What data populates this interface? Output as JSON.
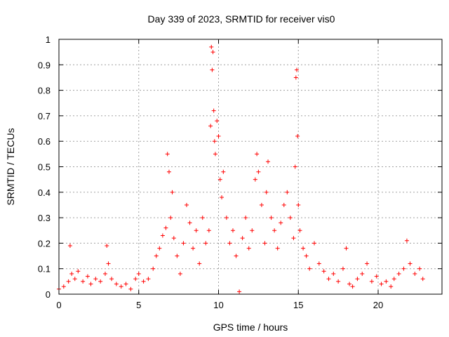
{
  "chart_data": {
    "type": "scatter",
    "title": "Day 339 of 2023, SRMTID for receiver vis0",
    "xlabel": "GPS time / hours",
    "ylabel": "SRMTID / TECUs",
    "xlim": [
      0,
      24
    ],
    "ylim": [
      0,
      1
    ],
    "xticks": [
      0,
      5,
      10,
      15,
      20
    ],
    "xtick_labels": [
      "0",
      "5",
      "10",
      "15",
      "20"
    ],
    "yticks": [
      0,
      0.1,
      0.2,
      0.3,
      0.4,
      0.5,
      0.6,
      0.7,
      0.8,
      0.9,
      1
    ],
    "ytick_labels": [
      "0",
      "0.1",
      "0.2",
      "0.3",
      "0.4",
      "0.5",
      "0.6",
      "0.7",
      "0.8",
      "0.9",
      "1"
    ],
    "grid": true,
    "marker": "plus",
    "color": "#ff0000",
    "series": [
      {
        "name": "vis0",
        "x": [
          0.0,
          0.3,
          0.6,
          0.7,
          0.8,
          1.0,
          1.2,
          1.5,
          1.8,
          2.0,
          2.3,
          2.6,
          2.9,
          3.0,
          3.1,
          3.3,
          3.6,
          3.9,
          4.2,
          4.5,
          4.8,
          5.0,
          5.3,
          5.6,
          5.9,
          6.1,
          6.3,
          6.5,
          6.7,
          6.8,
          6.9,
          7.0,
          7.1,
          7.2,
          7.4,
          7.6,
          7.8,
          8.0,
          8.2,
          8.4,
          8.6,
          8.8,
          9.0,
          9.2,
          9.4,
          9.5,
          9.55,
          9.6,
          9.65,
          9.7,
          9.75,
          9.8,
          9.9,
          10.0,
          10.1,
          10.2,
          10.3,
          10.5,
          10.7,
          10.9,
          11.1,
          11.3,
          11.5,
          11.7,
          11.9,
          12.1,
          12.3,
          12.4,
          12.5,
          12.7,
          12.9,
          13.0,
          13.1,
          13.3,
          13.5,
          13.7,
          13.9,
          14.1,
          14.3,
          14.5,
          14.7,
          14.8,
          14.85,
          14.9,
          14.95,
          15.0,
          15.1,
          15.3,
          15.5,
          15.7,
          16.0,
          16.3,
          16.6,
          16.9,
          17.2,
          17.5,
          17.8,
          18.0,
          18.2,
          18.4,
          18.7,
          19.0,
          19.3,
          19.6,
          19.9,
          20.2,
          20.5,
          20.8,
          21.0,
          21.3,
          21.6,
          21.8,
          22.0,
          22.3,
          22.6,
          22.8
        ],
        "y": [
          0.02,
          0.03,
          0.05,
          0.19,
          0.08,
          0.06,
          0.09,
          0.05,
          0.07,
          0.04,
          0.06,
          0.05,
          0.08,
          0.19,
          0.12,
          0.06,
          0.04,
          0.03,
          0.04,
          0.02,
          0.06,
          0.08,
          0.05,
          0.06,
          0.1,
          0.15,
          0.18,
          0.23,
          0.26,
          0.55,
          0.48,
          0.3,
          0.4,
          0.22,
          0.15,
          0.08,
          0.2,
          0.35,
          0.28,
          0.18,
          0.25,
          0.12,
          0.3,
          0.2,
          0.25,
          0.66,
          0.97,
          0.88,
          0.95,
          0.72,
          0.6,
          0.55,
          0.68,
          0.62,
          0.45,
          0.38,
          0.48,
          0.3,
          0.2,
          0.25,
          0.15,
          0.01,
          0.22,
          0.3,
          0.18,
          0.25,
          0.45,
          0.55,
          0.48,
          0.35,
          0.2,
          0.4,
          0.52,
          0.3,
          0.25,
          0.18,
          0.28,
          0.35,
          0.4,
          0.3,
          0.22,
          0.5,
          0.85,
          0.88,
          0.62,
          0.35,
          0.25,
          0.18,
          0.15,
          0.1,
          0.2,
          0.12,
          0.09,
          0.06,
          0.08,
          0.05,
          0.1,
          0.18,
          0.04,
          0.03,
          0.06,
          0.08,
          0.12,
          0.05,
          0.07,
          0.04,
          0.05,
          0.03,
          0.06,
          0.08,
          0.1,
          0.21,
          0.12,
          0.08,
          0.1,
          0.06
        ]
      }
    ]
  }
}
